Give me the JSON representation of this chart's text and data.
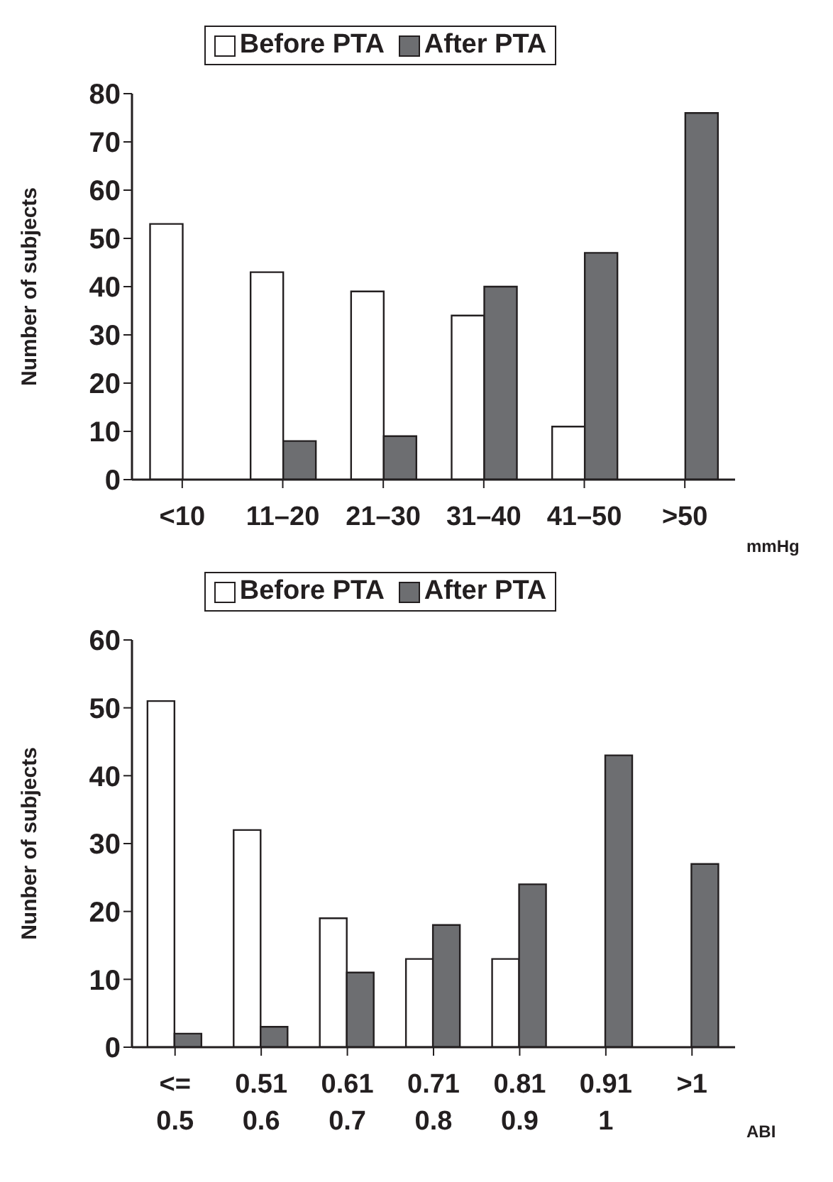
{
  "chart_data": [
    {
      "type": "bar",
      "categories": [
        "<10",
        "11–20",
        "21–30",
        "31–40",
        "41–50",
        ">50"
      ],
      "xlabel": "mmHg",
      "ylabel": "Number of subjects",
      "ylim": [
        0,
        80
      ],
      "yticks": [
        0,
        10,
        20,
        30,
        40,
        50,
        60,
        70,
        80
      ],
      "grid": false,
      "legend": "top",
      "series": [
        {
          "name": "Before PTA",
          "color": "#ffffff",
          "values": [
            53,
            43,
            39,
            34,
            11,
            null
          ]
        },
        {
          "name": "After PTA",
          "color": "#6d6e71",
          "values": [
            null,
            8,
            9,
            40,
            47,
            76
          ]
        }
      ]
    },
    {
      "type": "bar",
      "categories": [
        "<=\n0.5",
        "0.51\n0.6",
        "0.61\n0.7",
        "0.71\n0.8",
        "0.81\n0.9",
        "0.91\n1",
        ">1"
      ],
      "xlabel": "ABI",
      "ylabel": "Nunber of subjects",
      "ylim": [
        0,
        60
      ],
      "yticks": [
        0,
        10,
        20,
        30,
        40,
        50,
        60
      ],
      "grid": false,
      "legend": "top",
      "series": [
        {
          "name": "Before PTA",
          "color": "#ffffff",
          "values": [
            51,
            32,
            19,
            13,
            13,
            0,
            null
          ]
        },
        {
          "name": "After PTA",
          "color": "#6d6e71",
          "values": [
            2,
            3,
            11,
            18,
            24,
            43,
            27
          ]
        }
      ]
    }
  ]
}
